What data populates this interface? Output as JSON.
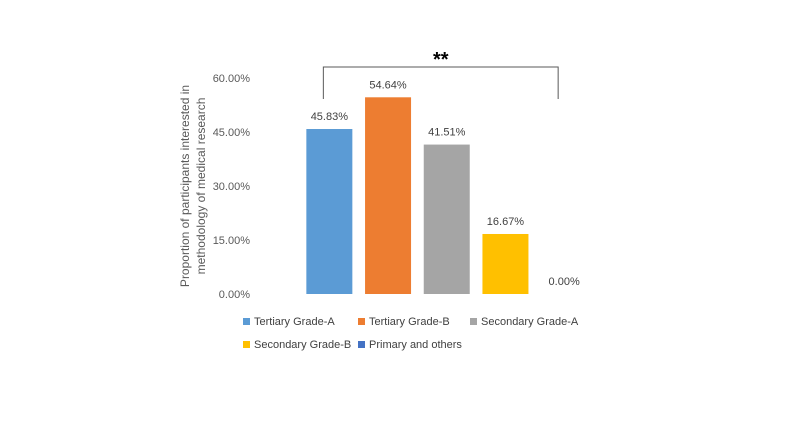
{
  "chart_data": {
    "type": "bar",
    "categories": [
      "Tertiary Grade-A",
      "Tertiary Grade-B",
      "Secondary Grade-A",
      "Secondary Grade-B",
      "Primary and others"
    ],
    "values": [
      45.83,
      54.64,
      41.51,
      16.67,
      0.0
    ],
    "data_labels": [
      "45.83%",
      "54.64%",
      "41.51%",
      "16.67%",
      "0.00%"
    ],
    "colors": [
      "#5b9bd5",
      "#ed7d31",
      "#a5a5a5",
      "#ffc000",
      "#4472c4"
    ],
    "ylabel_lines": [
      "Proportion of participants interested in",
      "methodology of medical research"
    ],
    "ylim": [
      0,
      60
    ],
    "yticks": [
      0,
      15,
      30,
      45,
      60
    ],
    "ytick_labels": [
      "0.00%",
      "15.00%",
      "30.00%",
      "45.00%",
      "60.00%"
    ],
    "significance": {
      "label": "**",
      "from_category": 0,
      "to_category": 4
    },
    "grid": false,
    "legend": {
      "position": "bottom",
      "rows": [
        [
          "Tertiary Grade-A",
          "Tertiary Grade-B",
          "Secondary Grade-A"
        ],
        [
          "Secondary Grade-B",
          "Primary and others"
        ]
      ]
    }
  }
}
